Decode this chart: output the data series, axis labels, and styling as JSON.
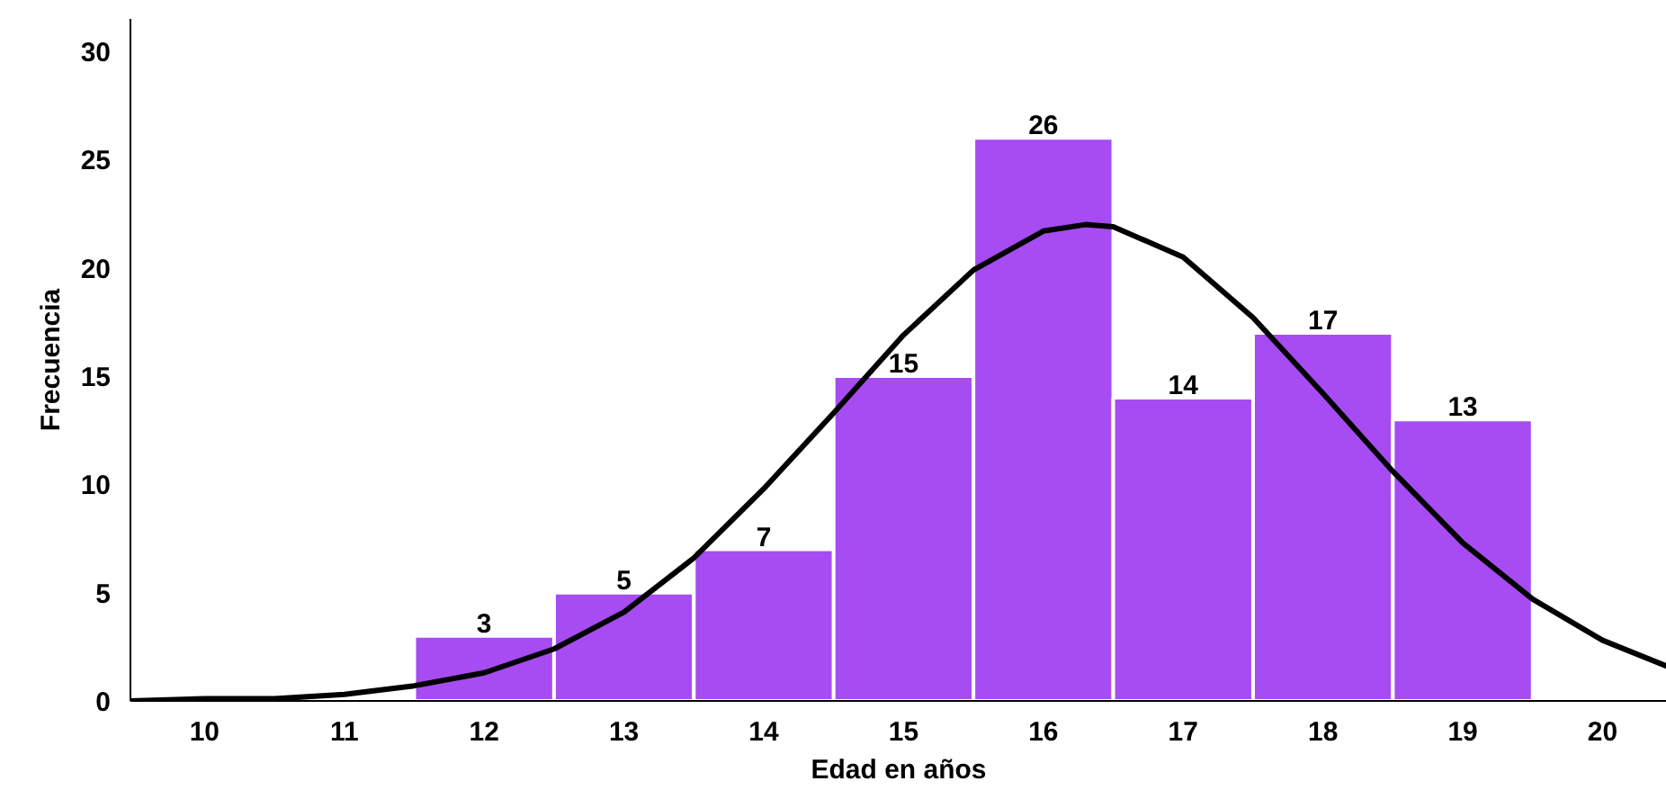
{
  "chart_data": {
    "type": "histogram",
    "xlabel": "Edad en años",
    "ylabel": "Frecuencia",
    "bins": [
      11.5,
      12.5,
      13.5,
      14.5,
      15.5,
      16.5,
      17.5,
      18.5,
      19.5
    ],
    "values": [
      3,
      5,
      7,
      15,
      26,
      14,
      17,
      13
    ],
    "color": "#a64cf2",
    "value_labels": [
      "3",
      "5",
      "7",
      "15",
      "26",
      "14",
      "17",
      "13"
    ],
    "series": [
      {
        "type": "line",
        "color": "#000000",
        "x": [
          9.47,
          10,
          10.5,
          11,
          11.5,
          12,
          12.5,
          13,
          13.5,
          14,
          14.5,
          15,
          15.5,
          16,
          16.3,
          16.5,
          17,
          17.5,
          18,
          18.5,
          19,
          19.5,
          20,
          20.46
        ],
        "values": [
          0.0,
          0.1,
          0.1,
          0.3,
          0.7,
          1.3,
          2.4,
          4.1,
          6.6,
          9.8,
          13.3,
          16.9,
          19.9,
          21.7,
          22.0,
          21.9,
          20.5,
          17.7,
          14.2,
          10.6,
          7.3,
          4.7,
          2.8,
          1.6
        ]
      }
    ],
    "xlim": [
      9.47,
      20.46
    ],
    "ylim": [
      0,
      31.5
    ],
    "xticks": [
      10,
      11,
      12,
      13,
      14,
      15,
      16,
      17,
      18,
      19,
      20
    ],
    "yticks": [
      0,
      5,
      10,
      15,
      20,
      25,
      30
    ],
    "grid": false
  }
}
